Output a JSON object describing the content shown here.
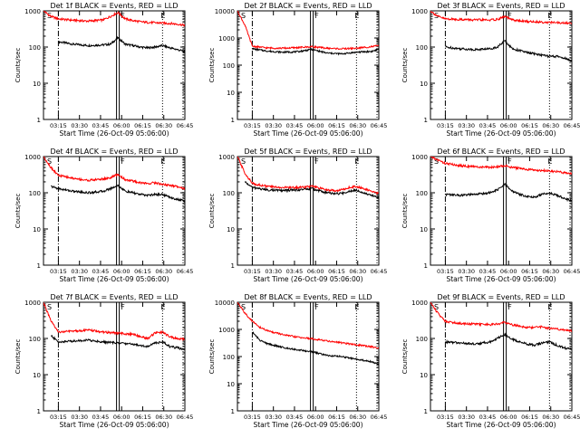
{
  "figure": {
    "x_axis_title": "Start Time (26-Oct-09 05:06:00)",
    "y_axis_title": "Counts/sec",
    "x_tick_labels": [
      "03:15",
      "03:30",
      "03:45",
      "06:00",
      "06:15",
      "06:30",
      "06:45"
    ],
    "y_tick_labels": [
      "1",
      "10",
      "100",
      "1000",
      "10000"
    ],
    "marker_labels": [
      "S",
      "F",
      "E"
    ],
    "colors": {
      "events": "#000000",
      "lld": "#ff0000",
      "background": "#ffffff",
      "marker": "#000000"
    }
  },
  "chart_data": [
    {
      "type": "line",
      "title": "Det 1f BLACK = Events, RED = LLD",
      "ylim": [
        1,
        1000
      ],
      "y_scale": "log",
      "x_minutes_range": [
        0,
        95
      ],
      "markers": {
        "S": 10,
        "F": 50,
        "E": 80
      },
      "series": [
        {
          "name": "Events",
          "color": "#000000",
          "x": [
            10,
            20,
            30,
            40,
            45,
            50,
            55,
            60,
            65,
            70,
            75,
            80,
            85,
            90,
            95
          ],
          "y": [
            140,
            120,
            110,
            115,
            120,
            180,
            120,
            110,
            100,
            95,
            100,
            110,
            95,
            85,
            75
          ]
        },
        {
          "name": "LLD",
          "color": "#ff0000",
          "x": [
            0,
            5,
            10,
            20,
            30,
            40,
            45,
            50,
            55,
            60,
            65,
            70,
            75,
            80,
            85,
            90,
            95
          ],
          "y": [
            1000,
            700,
            600,
            550,
            520,
            560,
            700,
            900,
            600,
            540,
            500,
            480,
            470,
            460,
            450,
            430,
            400
          ]
        }
      ]
    },
    {
      "type": "line",
      "title": "Det 2f BLACK = Events, RED = LLD",
      "ylim": [
        1,
        10000
      ],
      "y_scale": "log",
      "x_minutes_range": [
        0,
        95
      ],
      "markers": {
        "S": 10,
        "F": 50,
        "E": 80
      },
      "series": [
        {
          "name": "Events",
          "color": "#000000",
          "x": [
            10,
            20,
            30,
            40,
            50,
            60,
            70,
            80,
            90,
            95
          ],
          "y": [
            400,
            330,
            300,
            310,
            380,
            280,
            260,
            300,
            320,
            380
          ]
        },
        {
          "name": "LLD",
          "color": "#ff0000",
          "x": [
            0,
            5,
            10,
            20,
            30,
            40,
            50,
            60,
            70,
            80,
            90,
            95
          ],
          "y": [
            10000,
            3000,
            500,
            430,
            420,
            440,
            480,
            420,
            400,
            420,
            480,
            520
          ]
        }
      ]
    },
    {
      "type": "line",
      "title": "Det 3f BLACK = Events, RED = LLD",
      "ylim": [
        1,
        1000
      ],
      "y_scale": "log",
      "x_minutes_range": [
        0,
        95
      ],
      "markers": {
        "S": 10,
        "F": 50,
        "E": 80
      },
      "series": [
        {
          "name": "Events",
          "color": "#000000",
          "x": [
            10,
            20,
            30,
            40,
            45,
            50,
            55,
            60,
            65,
            70,
            75,
            80,
            85,
            90,
            95
          ],
          "y": [
            100,
            90,
            85,
            90,
            100,
            150,
            90,
            80,
            70,
            65,
            60,
            55,
            55,
            50,
            40
          ]
        },
        {
          "name": "LLD",
          "color": "#ff0000",
          "x": [
            0,
            5,
            10,
            20,
            30,
            40,
            45,
            50,
            55,
            60,
            65,
            70,
            75,
            80,
            85,
            90,
            95
          ],
          "y": [
            1000,
            700,
            600,
            580,
            560,
            560,
            580,
            700,
            560,
            530,
            510,
            500,
            490,
            480,
            470,
            460,
            450
          ]
        }
      ]
    },
    {
      "type": "line",
      "title": "Det 4f BLACK = Events, RED = LLD",
      "ylim": [
        1,
        1000
      ],
      "y_scale": "log",
      "x_minutes_range": [
        0,
        95
      ],
      "markers": {
        "S": 10,
        "F": 50,
        "E": 80
      },
      "series": [
        {
          "name": "Events",
          "color": "#000000",
          "x": [
            5,
            10,
            20,
            30,
            40,
            45,
            50,
            55,
            60,
            65,
            70,
            75,
            80,
            85,
            90,
            95
          ],
          "y": [
            150,
            130,
            110,
            100,
            110,
            130,
            160,
            110,
            100,
            90,
            85,
            90,
            90,
            75,
            65,
            60
          ]
        },
        {
          "name": "LLD",
          "color": "#ff0000",
          "x": [
            0,
            5,
            10,
            20,
            30,
            40,
            45,
            50,
            55,
            60,
            65,
            70,
            75,
            80,
            85,
            90,
            95
          ],
          "y": [
            1000,
            500,
            300,
            250,
            220,
            240,
            260,
            320,
            230,
            210,
            190,
            180,
            190,
            170,
            160,
            150,
            130
          ]
        }
      ]
    },
    {
      "type": "line",
      "title": "Det 5f BLACK = Events, RED = LLD",
      "ylim": [
        1,
        1000
      ],
      "y_scale": "log",
      "x_minutes_range": [
        0,
        95
      ],
      "markers": {
        "S": 10,
        "F": 50,
        "E": 80
      },
      "series": [
        {
          "name": "Events",
          "color": "#000000",
          "x": [
            5,
            10,
            20,
            30,
            40,
            50,
            60,
            65,
            70,
            75,
            80,
            85,
            90,
            95
          ],
          "y": [
            200,
            140,
            120,
            115,
            120,
            130,
            100,
            95,
            95,
            110,
            120,
            100,
            85,
            75
          ]
        },
        {
          "name": "LLD",
          "color": "#ff0000",
          "x": [
            0,
            5,
            10,
            20,
            30,
            40,
            50,
            60,
            65,
            70,
            75,
            80,
            85,
            90,
            95
          ],
          "y": [
            1000,
            350,
            180,
            150,
            140,
            140,
            150,
            120,
            115,
            120,
            140,
            150,
            130,
            110,
            95
          ]
        }
      ]
    },
    {
      "type": "line",
      "title": "Det 6f BLACK = Events, RED = LLD",
      "ylim": [
        1,
        1000
      ],
      "y_scale": "log",
      "x_minutes_range": [
        0,
        95
      ],
      "markers": {
        "S": 10,
        "F": 50,
        "E": 80
      },
      "series": [
        {
          "name": "Events",
          "color": "#000000",
          "x": [
            10,
            20,
            30,
            40,
            45,
            50,
            55,
            60,
            65,
            70,
            75,
            80,
            85,
            90,
            95
          ],
          "y": [
            90,
            85,
            90,
            100,
            120,
            170,
            110,
            90,
            80,
            75,
            90,
            100,
            85,
            70,
            60
          ]
        },
        {
          "name": "LLD",
          "color": "#ff0000",
          "x": [
            0,
            5,
            10,
            20,
            30,
            40,
            45,
            50,
            55,
            60,
            65,
            70,
            75,
            80,
            85,
            90,
            95
          ],
          "y": [
            1000,
            800,
            650,
            560,
            520,
            500,
            520,
            560,
            500,
            470,
            440,
            420,
            410,
            400,
            380,
            360,
            340
          ]
        }
      ]
    },
    {
      "type": "line",
      "title": "Det 7f BLACK = Events, RED = LLD",
      "ylim": [
        1,
        1000
      ],
      "y_scale": "log",
      "x_minutes_range": [
        0,
        95
      ],
      "markers": {
        "S": 10,
        "F": 50,
        "E": 80
      },
      "series": [
        {
          "name": "Events",
          "color": "#000000",
          "x": [
            5,
            10,
            20,
            30,
            40,
            50,
            60,
            70,
            75,
            80,
            85,
            90,
            95
          ],
          "y": [
            120,
            80,
            85,
            90,
            80,
            75,
            70,
            60,
            75,
            80,
            60,
            55,
            50
          ]
        },
        {
          "name": "LLD",
          "color": "#ff0000",
          "x": [
            0,
            5,
            10,
            20,
            30,
            40,
            50,
            60,
            70,
            75,
            80,
            85,
            90,
            95
          ],
          "y": [
            1000,
            300,
            150,
            160,
            170,
            150,
            140,
            130,
            100,
            140,
            150,
            110,
            100,
            95
          ]
        }
      ]
    },
    {
      "type": "line",
      "title": "Det 8f BLACK = Events, RED = LLD",
      "ylim": [
        1,
        10000
      ],
      "y_scale": "log",
      "x_minutes_range": [
        0,
        95
      ],
      "markers": {
        "S": 10,
        "F": 50,
        "E": 80
      },
      "series": [
        {
          "name": "Events",
          "color": "#000000",
          "x": [
            10,
            15,
            20,
            30,
            40,
            50,
            60,
            70,
            80,
            90,
            95
          ],
          "y": [
            800,
            400,
            300,
            220,
            180,
            150,
            110,
            100,
            80,
            65,
            50
          ]
        },
        {
          "name": "LLD",
          "color": "#ff0000",
          "x": [
            0,
            5,
            10,
            15,
            20,
            30,
            40,
            50,
            60,
            70,
            80,
            90,
            95
          ],
          "y": [
            10000,
            4000,
            2000,
            1200,
            900,
            650,
            520,
            450,
            380,
            320,
            270,
            230,
            200
          ]
        }
      ]
    },
    {
      "type": "line",
      "title": "Det 9f BLACK = Events, RED = LLD",
      "ylim": [
        1,
        1000
      ],
      "y_scale": "log",
      "x_minutes_range": [
        0,
        95
      ],
      "markers": {
        "S": 10,
        "F": 50,
        "E": 80
      },
      "series": [
        {
          "name": "Events",
          "color": "#000000",
          "x": [
            10,
            20,
            30,
            40,
            45,
            50,
            55,
            60,
            65,
            70,
            75,
            80,
            85,
            90,
            95
          ],
          "y": [
            80,
            75,
            70,
            80,
            100,
            130,
            95,
            80,
            70,
            65,
            75,
            80,
            65,
            55,
            50
          ]
        },
        {
          "name": "LLD",
          "color": "#ff0000",
          "x": [
            0,
            5,
            10,
            20,
            30,
            40,
            45,
            50,
            55,
            60,
            65,
            70,
            75,
            80,
            85,
            90,
            95
          ],
          "y": [
            1000,
            500,
            300,
            260,
            250,
            240,
            250,
            280,
            240,
            220,
            200,
            200,
            210,
            190,
            180,
            170,
            160
          ]
        }
      ]
    }
  ]
}
